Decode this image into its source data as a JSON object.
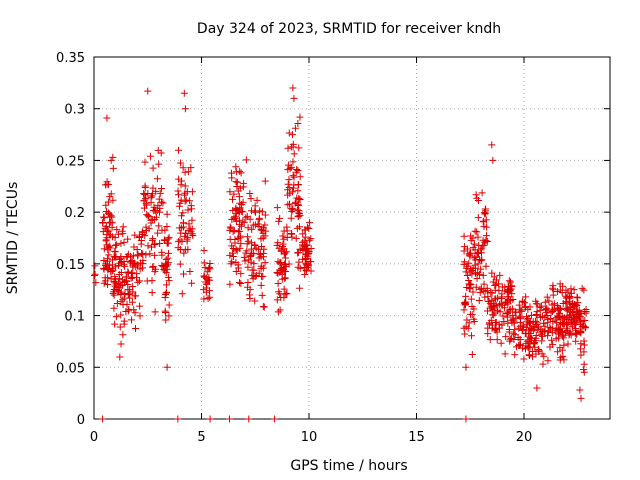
{
  "chart_data": {
    "type": "scatter",
    "title": "Day 324 of 2023, SRMTID for receiver kndh",
    "xlabel": "GPS time / hours",
    "ylabel": "SRMTID / TECUs",
    "xlim": [
      0,
      24
    ],
    "ylim": [
      0,
      0.35
    ],
    "xticks": [
      0,
      5,
      10,
      15,
      20
    ],
    "xtick_labels": [
      "0",
      "5",
      "10",
      "15",
      "20"
    ],
    "yticks": [
      0,
      0.05,
      0.1,
      0.15,
      0.2,
      0.25,
      0.3,
      0.35
    ],
    "ytick_labels": [
      "0",
      "0.05",
      "0.1",
      "0.15",
      "0.2",
      "0.25",
      "0.3",
      "0.35"
    ],
    "grid": true,
    "marker": "+",
    "colors": {
      "series": "#dd0000",
      "grid": "#aaaaaa",
      "axis": "#000000"
    },
    "series": [
      {
        "name": "SRMTID",
        "clusters": [
          {
            "x_range": [
              0.0,
              0.1
            ],
            "y_range": [
              0.13,
              0.15
            ],
            "count": 3
          },
          {
            "x_range": [
              0.4,
              0.9
            ],
            "y_range": [
              0.09,
              0.27
            ],
            "count": 70
          },
          {
            "x_range": [
              0.9,
              1.5
            ],
            "y_range": [
              0.06,
              0.2
            ],
            "count": 70
          },
          {
            "x_range": [
              1.5,
              2.3
            ],
            "y_range": [
              0.08,
              0.2
            ],
            "count": 70
          },
          {
            "x_range": [
              2.3,
              3.3
            ],
            "y_range": [
              0.1,
              0.3
            ],
            "count": 80
          },
          {
            "x_range": [
              3.3,
              3.5
            ],
            "y_range": [
              0.05,
              0.22
            ],
            "count": 30
          },
          {
            "x_range": [
              3.9,
              4.6
            ],
            "y_range": [
              0.1,
              0.28
            ],
            "count": 60
          },
          {
            "x_range": [
              5.1,
              5.4
            ],
            "y_range": [
              0.1,
              0.17
            ],
            "count": 25
          },
          {
            "x_range": [
              6.3,
              7.1
            ],
            "y_range": [
              0.1,
              0.28
            ],
            "count": 80
          },
          {
            "x_range": [
              7.1,
              8.0
            ],
            "y_range": [
              0.09,
              0.24
            ],
            "count": 80
          },
          {
            "x_range": [
              8.5,
              9.0
            ],
            "y_range": [
              0.08,
              0.22
            ],
            "count": 55
          },
          {
            "x_range": [
              9.0,
              9.6
            ],
            "y_range": [
              0.12,
              0.31
            ],
            "count": 70
          },
          {
            "x_range": [
              9.7,
              10.1
            ],
            "y_range": [
              0.12,
              0.2
            ],
            "count": 50
          },
          {
            "x_range": [
              17.2,
              17.7
            ],
            "y_range": [
              0.04,
              0.22
            ],
            "count": 60
          },
          {
            "x_range": [
              17.7,
              18.3
            ],
            "y_range": [
              0.08,
              0.25
            ],
            "count": 60
          },
          {
            "x_range": [
              18.3,
              19.5
            ],
            "y_range": [
              0.06,
              0.16
            ],
            "count": 110
          },
          {
            "x_range": [
              19.5,
              20.8
            ],
            "y_range": [
              0.045,
              0.13
            ],
            "count": 110
          },
          {
            "x_range": [
              20.8,
              21.9
            ],
            "y_range": [
              0.045,
              0.14
            ],
            "count": 100
          },
          {
            "x_range": [
              21.9,
              22.6
            ],
            "y_range": [
              0.06,
              0.14
            ],
            "count": 80
          },
          {
            "x_range": [
              22.6,
              22.9
            ],
            "y_range": [
              0.02,
              0.16
            ],
            "count": 30
          }
        ],
        "points": [
          {
            "x": 0.05,
            "y": 0.14
          },
          {
            "x": 2.5,
            "y": 0.317
          },
          {
            "x": 4.2,
            "y": 0.315
          },
          {
            "x": 4.25,
            "y": 0.3
          },
          {
            "x": 9.25,
            "y": 0.32
          },
          {
            "x": 9.3,
            "y": 0.31
          },
          {
            "x": 18.5,
            "y": 0.265
          },
          {
            "x": 18.55,
            "y": 0.25
          },
          {
            "x": 22.65,
            "y": 0.02
          },
          {
            "x": 22.6,
            "y": 0.028
          },
          {
            "x": 1.2,
            "y": 0.06
          },
          {
            "x": 17.3,
            "y": 0.05
          },
          {
            "x": 0.6,
            "y": 0.291
          },
          {
            "x": 3.4,
            "y": 0.05
          },
          {
            "x": 20.6,
            "y": 0.03
          }
        ]
      },
      {
        "name": "zero-valued",
        "points": [
          {
            "x": 0.4,
            "y": 0
          },
          {
            "x": 3.9,
            "y": 0
          },
          {
            "x": 5.4,
            "y": 0
          },
          {
            "x": 6.3,
            "y": 0
          },
          {
            "x": 7.2,
            "y": 0
          },
          {
            "x": 8.4,
            "y": 0
          },
          {
            "x": 17.3,
            "y": 0
          }
        ]
      }
    ]
  }
}
